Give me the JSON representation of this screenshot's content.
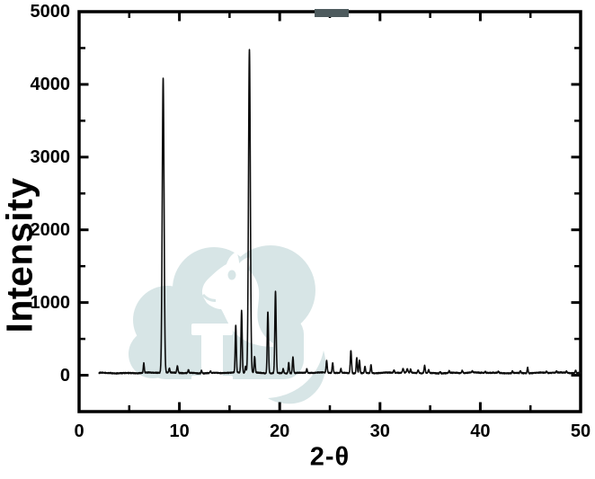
{
  "chart_data": {
    "type": "line",
    "title": "",
    "xlabel": "2-θ",
    "ylabel": "Intensity",
    "xlim": [
      0,
      50
    ],
    "ylim": [
      -500,
      5000
    ],
    "grid": false,
    "legend": null,
    "x_major_ticks": [
      0,
      10,
      20,
      30,
      40,
      50
    ],
    "x_minor_ticks": [
      5,
      15,
      25,
      35,
      45
    ],
    "y_major_ticks": [
      0,
      1000,
      2000,
      3000,
      4000,
      5000
    ],
    "y_minor_ticks": [
      500,
      1500,
      2500,
      3500,
      4500
    ],
    "x_tick_labels": [
      "0",
      "10",
      "20",
      "30",
      "40",
      "50"
    ],
    "y_tick_labels": [
      "0",
      "1000",
      "2000",
      "3000",
      "4000",
      "5000"
    ],
    "series": [
      {
        "color": "#0d0d0d",
        "x_start": 2.0,
        "x_end": 50.0,
        "baseline": 32,
        "noise_amplitude": 9,
        "peaks": [
          [
            6.45,
            130,
            0.05
          ],
          [
            8.38,
            4050,
            0.09
          ],
          [
            9.0,
            55,
            0.05
          ],
          [
            9.8,
            95,
            0.06
          ],
          [
            10.9,
            45,
            0.05
          ],
          [
            12.2,
            40,
            0.05
          ],
          [
            13.1,
            25,
            0.05
          ],
          [
            15.62,
            650,
            0.055
          ],
          [
            16.2,
            850,
            0.06
          ],
          [
            16.6,
            90,
            0.05
          ],
          [
            16.98,
            4440,
            0.09
          ],
          [
            17.5,
            220,
            0.055
          ],
          [
            18.82,
            850,
            0.06
          ],
          [
            19.58,
            1120,
            0.065
          ],
          [
            20.35,
            60,
            0.05
          ],
          [
            20.9,
            150,
            0.05
          ],
          [
            21.32,
            220,
            0.055
          ],
          [
            22.7,
            50,
            0.05
          ],
          [
            24.68,
            165,
            0.055
          ],
          [
            25.28,
            140,
            0.055
          ],
          [
            26.1,
            55,
            0.05
          ],
          [
            27.1,
            310,
            0.06
          ],
          [
            27.68,
            215,
            0.055
          ],
          [
            27.95,
            175,
            0.055
          ],
          [
            28.5,
            90,
            0.05
          ],
          [
            29.1,
            115,
            0.05
          ],
          [
            31.4,
            35,
            0.05
          ],
          [
            32.3,
            55,
            0.06
          ],
          [
            32.72,
            50,
            0.06
          ],
          [
            33.05,
            45,
            0.05
          ],
          [
            33.8,
            40,
            0.06
          ],
          [
            34.45,
            105,
            0.055
          ],
          [
            34.85,
            45,
            0.05
          ],
          [
            36.0,
            22,
            0.05
          ],
          [
            36.9,
            25,
            0.05
          ],
          [
            38.2,
            32,
            0.06
          ],
          [
            39.2,
            18,
            0.05
          ],
          [
            40.5,
            15,
            0.05
          ],
          [
            41.8,
            20,
            0.05
          ],
          [
            43.2,
            32,
            0.05
          ],
          [
            44.0,
            28,
            0.05
          ],
          [
            44.72,
            80,
            0.05
          ],
          [
            46.6,
            20,
            0.05
          ],
          [
            47.6,
            18,
            0.05
          ],
          [
            48.6,
            20,
            0.05
          ],
          [
            49.5,
            35,
            0.05
          ]
        ]
      }
    ]
  },
  "watermark": {
    "color": "#d7e5e6",
    "description": "pale teal cloud logo with white horse head and roman column",
    "smudge_color": "#4e5b5e"
  },
  "frame": {
    "color": "#000000"
  }
}
